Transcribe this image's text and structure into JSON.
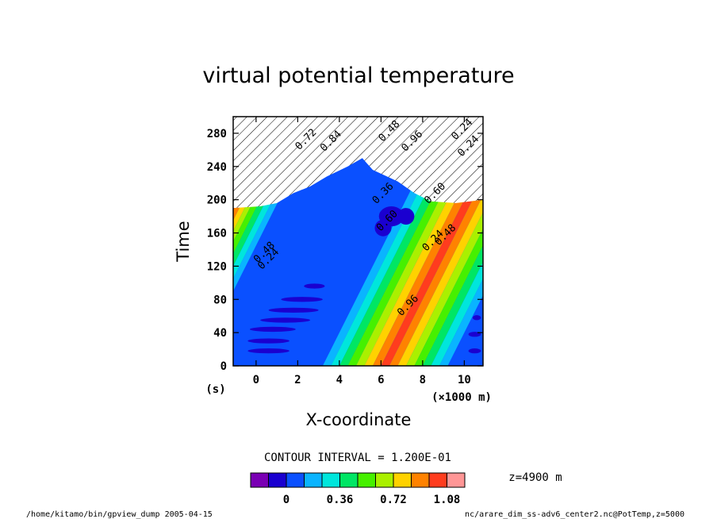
{
  "chart_data": {
    "type": "heatmap",
    "title": "virtual potential temperature",
    "xlabel": "X-coordinate",
    "ylabel": "Time",
    "x_unit": "(×1000 m)",
    "y_unit": "(s)",
    "xlim": [
      -1.1,
      10.9
    ],
    "ylim": [
      0,
      300
    ],
    "x_ticks": [
      "0",
      "2",
      "4",
      "6",
      "8",
      "10"
    ],
    "x_tick_values": [
      0,
      2,
      4,
      6,
      8,
      10
    ],
    "y_ticks": [
      "0",
      "40",
      "80",
      "120",
      "160",
      "200",
      "240",
      "280"
    ],
    "y_tick_values": [
      0,
      40,
      80,
      120,
      160,
      200,
      240,
      280
    ],
    "contour_interval_text": "CONTOUR INTERVAL = 1.200E-01",
    "level_text": "z=4900 m",
    "contour_labels": [
      {
        "text": "0.24",
        "x": 0.7,
        "y": 126
      },
      {
        "text": "0.48",
        "x": 0.5,
        "y": 134
      },
      {
        "text": "0.96",
        "x": 7.4,
        "y": 70
      },
      {
        "text": "0.36",
        "x": 6.2,
        "y": 205
      },
      {
        "text": "0.60",
        "x": 6.4,
        "y": 172
      },
      {
        "text": "0.24",
        "x": 8.6,
        "y": 148
      },
      {
        "text": "0.48",
        "x": 9.2,
        "y": 155
      },
      {
        "text": "0.48",
        "x": 6.5,
        "y": 280
      },
      {
        "text": "0.96",
        "x": 7.6,
        "y": 268
      },
      {
        "text": "0.24",
        "x": 10.0,
        "y": 282
      },
      {
        "text": "0.24",
        "x": 10.3,
        "y": 262
      },
      {
        "text": "0.60",
        "x": 8.7,
        "y": 205
      },
      {
        "text": "0.72",
        "x": 2.5,
        "y": 270
      },
      {
        "text": "0.84",
        "x": 3.7,
        "y": 268
      }
    ],
    "colorbar": {
      "colors": [
        "#7a00b4",
        "#1a00d0",
        "#0a50ff",
        "#0ab4ff",
        "#00e6dc",
        "#00e664",
        "#46f000",
        "#aaf000",
        "#ffd200",
        "#ff8200",
        "#ff3c1e",
        "#ff9696"
      ],
      "labels": [
        "0",
        "0.36",
        "0.72",
        "1.08"
      ],
      "label_values": [
        0,
        0.36,
        0.72,
        1.08
      ],
      "interval": 0.12,
      "min": -0.24,
      "max": 1.2
    }
  },
  "footer": {
    "left": "/home/kitamo/bin/gpview_dump  2005-04-15",
    "right": "nc/arare_dim_ss-adv6_center2.nc@PotTemp,z=5000"
  }
}
